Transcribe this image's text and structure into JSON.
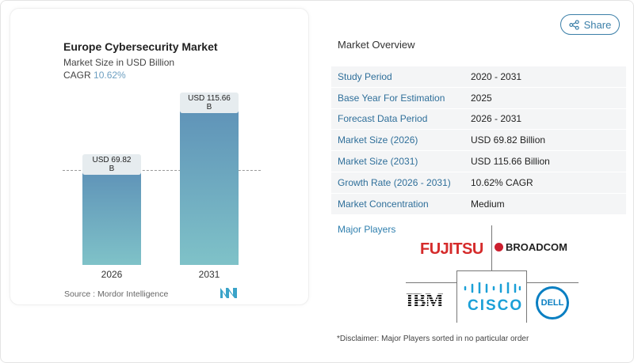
{
  "chart_data": {
    "type": "bar",
    "title": "Europe Cybersecurity Market",
    "subtitle": "Market Size in USD Billion",
    "cagr_label": "CAGR",
    "cagr_value": "10.62%",
    "categories": [
      "2026",
      "2031"
    ],
    "values": [
      69.82,
      115.66
    ],
    "data_labels": [
      "USD 69.82 B",
      "USD 115.66 B"
    ],
    "source": "Source :  Mordor Intelligence",
    "colors": {
      "bar_top": "#5f93b8",
      "bar_bottom": "#7fc2c8"
    }
  },
  "share_label": "Share",
  "overview": {
    "title": "Market Overview",
    "rows": [
      {
        "k": "Study Period",
        "v": "2020 - 2031"
      },
      {
        "k": "Base Year For Estimation",
        "v": "2025"
      },
      {
        "k": "Forecast Data Period",
        "v": "2026 - 2031"
      },
      {
        "k": "Market Size (2026)",
        "v": "USD 69.82 Billion"
      },
      {
        "k": "Market Size (2031)",
        "v": "USD 115.66 Billion"
      },
      {
        "k": "Growth Rate (2026 - 2031)",
        "v": "10.62% CAGR"
      },
      {
        "k": "Market Concentration",
        "v": "Medium"
      }
    ]
  },
  "players": {
    "title": "Major Players",
    "logos": [
      "FUJITSU",
      "BROADCOM",
      "IBM",
      "CISCO",
      "DELL"
    ],
    "disclaimer": "*Disclaimer: Major Players sorted in no particular order"
  }
}
